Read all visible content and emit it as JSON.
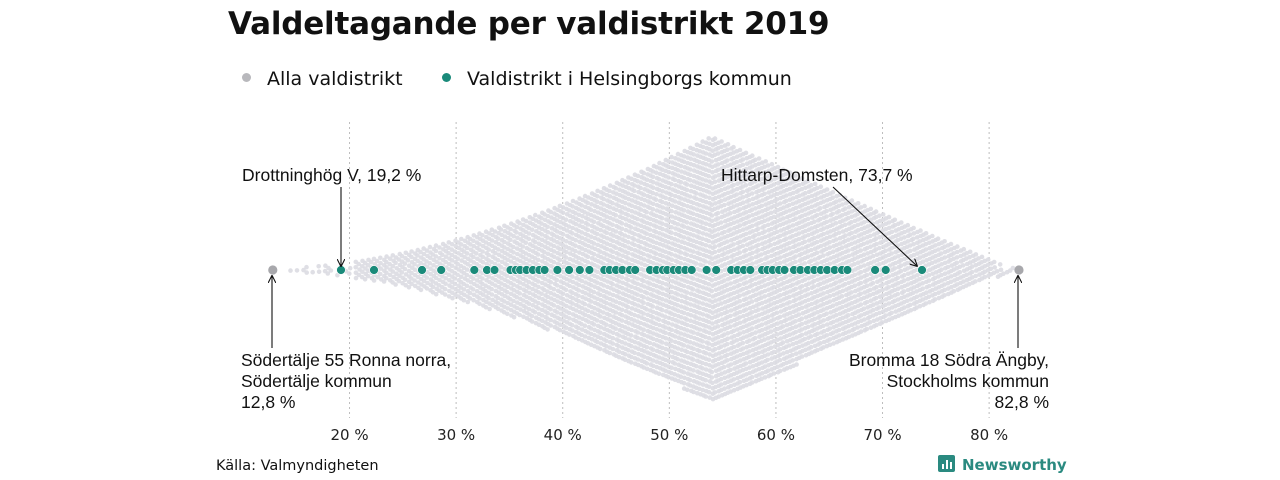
{
  "chart_data": {
    "type": "scatter",
    "subtype": "beeswarm",
    "title": "Valdeltagande per valdistrikt 2019",
    "legend": {
      "placement": "top-left",
      "entries": [
        {
          "label": "Alla valdistrikt",
          "color": "#b8b8bc"
        },
        {
          "label": "Valdistrikt i Helsingborgs kommun",
          "color": "#1a8a7a"
        }
      ]
    },
    "x_axis": {
      "range": [
        11,
        86
      ],
      "ticks": [
        20,
        30,
        40,
        50,
        60,
        70,
        80
      ],
      "tick_labels": [
        "20 %",
        "30 %",
        "40 %",
        "50 %",
        "60 %",
        "70 %",
        "80 %"
      ],
      "grid": true
    },
    "distribution_all": {
      "peak": 54,
      "min": 12.8,
      "max": 82.8,
      "color": "#dcdce2"
    },
    "series": [
      {
        "name": "Valdistrikt i Helsingborgs kommun",
        "color": "#1a8a7a",
        "values": [
          19.2,
          22.3,
          26.8,
          28.6,
          31.7,
          32.9,
          33.6,
          35.1,
          35.6,
          36.0,
          36.6,
          37.2,
          37.8,
          38.3,
          39.5,
          40.6,
          41.6,
          42.5,
          43.9,
          44.4,
          45.0,
          45.6,
          46.3,
          46.8,
          48.2,
          48.8,
          49.4,
          49.8,
          50.4,
          50.9,
          51.5,
          52.1,
          53.5,
          54.4,
          55.8,
          56.4,
          57.0,
          57.6,
          58.7,
          59.2,
          59.7,
          60.3,
          60.8,
          61.7,
          62.3,
          63.0,
          63.6,
          64.2,
          64.8,
          65.5,
          66.2,
          66.7,
          69.3,
          70.3,
          73.7
        ]
      }
    ],
    "highlight_points": [
      {
        "value": 12.8,
        "series": "Alla valdistrikt",
        "color": "#a8a8ac"
      },
      {
        "value": 82.8,
        "series": "Alla valdistrikt",
        "color": "#a8a8ac"
      }
    ],
    "annotations": [
      {
        "id": "drottninghog",
        "lines": [
          "Drottninghög V, 19,2 %"
        ],
        "value": 19.2,
        "anchor": "start",
        "position": "above"
      },
      {
        "id": "hittarp",
        "lines": [
          "Hittarp-Domsten, 73,7 %"
        ],
        "value": 73.7,
        "anchor": "start",
        "position": "above"
      },
      {
        "id": "sodertalje",
        "lines": [
          "Södertälje 55 Ronna norra,",
          "Södertälje kommun",
          "12,8 %"
        ],
        "value": 12.8,
        "anchor": "start",
        "position": "below"
      },
      {
        "id": "bromma",
        "lines": [
          "Bromma 18 Södra Ängby,",
          "Stockholms kommun",
          "82,8 %"
        ],
        "value": 82.8,
        "anchor": "end",
        "position": "below"
      }
    ]
  },
  "footer": {
    "source": "Källa: Valmyndigheten",
    "brand": "Newsworthy"
  }
}
